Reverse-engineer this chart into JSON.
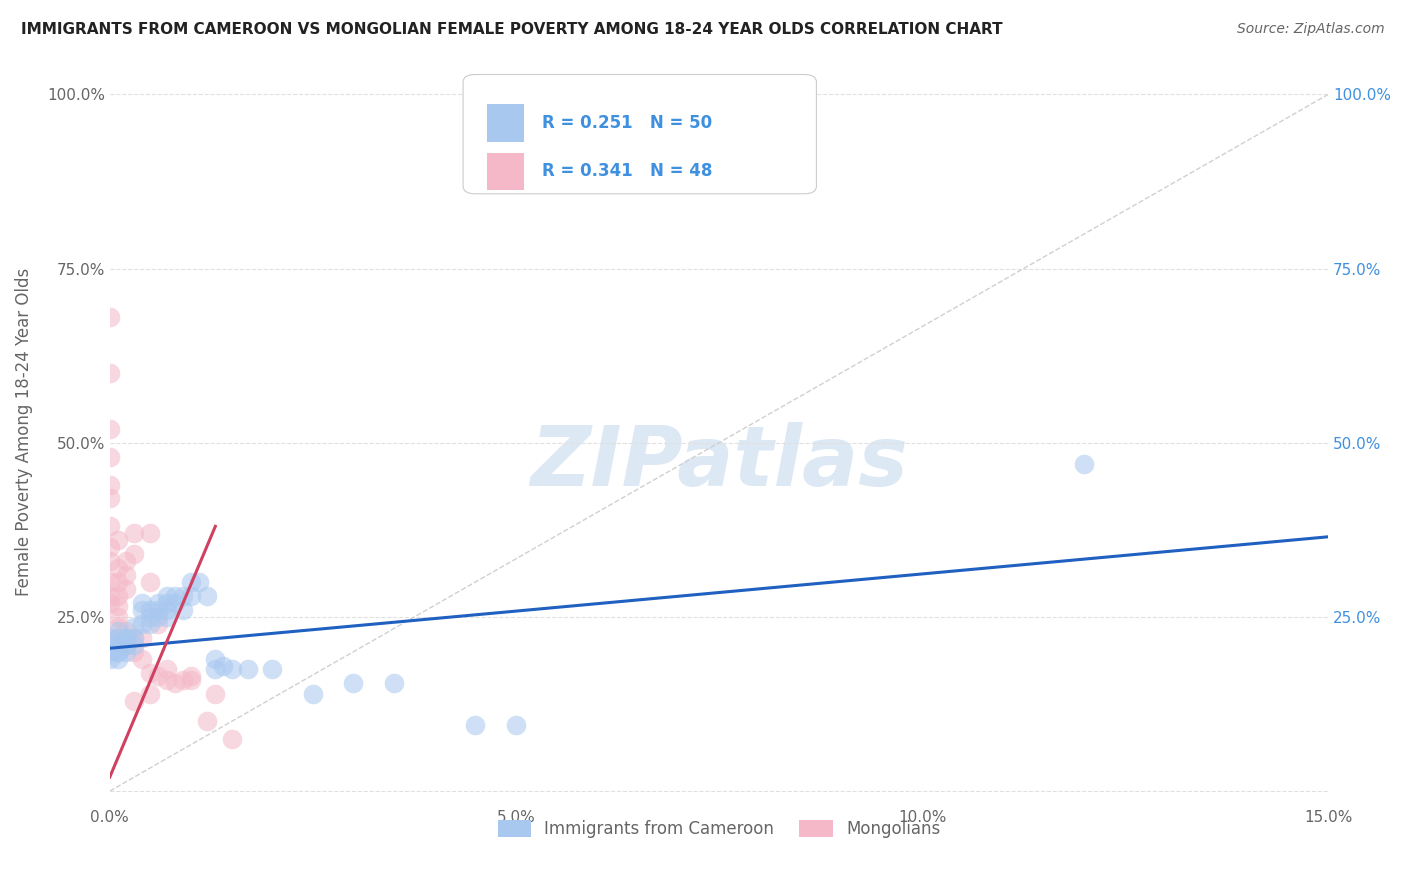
{
  "title": "IMMIGRANTS FROM CAMEROON VS MONGOLIAN FEMALE POVERTY AMONG 18-24 YEAR OLDS CORRELATION CHART",
  "source": "Source: ZipAtlas.com",
  "ylabel": "Female Poverty Among 18-24 Year Olds",
  "xlim": [
    0.0,
    0.15
  ],
  "ylim": [
    -0.02,
    1.05
  ],
  "xticks": [
    0.0,
    0.05,
    0.1,
    0.15
  ],
  "xticklabels": [
    "0.0%",
    "5.0%",
    "10.0%",
    "15.0%"
  ],
  "yticks": [
    0.0,
    0.25,
    0.5,
    0.75,
    1.0
  ],
  "yticklabels_left": [
    "",
    "25.0%",
    "50.0%",
    "75.0%",
    "100.0%"
  ],
  "yticklabels_right": [
    "",
    "25.0%",
    "50.0%",
    "75.0%",
    "100.0%"
  ],
  "legend_entries": [
    {
      "label": "Immigrants from Cameroon",
      "color": "#a8c8f0",
      "R": "0.251",
      "N": "50"
    },
    {
      "label": "Mongolians",
      "color": "#f4b8c8",
      "R": "0.341",
      "N": "48"
    }
  ],
  "blue_scatter": [
    [
      0.0,
      0.2
    ],
    [
      0.0,
      0.22
    ],
    [
      0.0,
      0.19
    ],
    [
      0.0,
      0.21
    ],
    [
      0.001,
      0.2
    ],
    [
      0.001,
      0.23
    ],
    [
      0.001,
      0.21
    ],
    [
      0.001,
      0.22
    ],
    [
      0.001,
      0.19
    ],
    [
      0.001,
      0.2
    ],
    [
      0.002,
      0.21
    ],
    [
      0.002,
      0.22
    ],
    [
      0.002,
      0.2
    ],
    [
      0.002,
      0.22
    ],
    [
      0.003,
      0.235
    ],
    [
      0.003,
      0.21
    ],
    [
      0.003,
      0.22
    ],
    [
      0.004,
      0.27
    ],
    [
      0.004,
      0.26
    ],
    [
      0.004,
      0.24
    ],
    [
      0.005,
      0.25
    ],
    [
      0.005,
      0.24
    ],
    [
      0.005,
      0.26
    ],
    [
      0.006,
      0.27
    ],
    [
      0.006,
      0.25
    ],
    [
      0.006,
      0.26
    ],
    [
      0.007,
      0.28
    ],
    [
      0.007,
      0.27
    ],
    [
      0.007,
      0.26
    ],
    [
      0.007,
      0.25
    ],
    [
      0.008,
      0.27
    ],
    [
      0.008,
      0.28
    ],
    [
      0.009,
      0.28
    ],
    [
      0.009,
      0.26
    ],
    [
      0.01,
      0.3
    ],
    [
      0.01,
      0.28
    ],
    [
      0.011,
      0.3
    ],
    [
      0.012,
      0.28
    ],
    [
      0.013,
      0.19
    ],
    [
      0.013,
      0.175
    ],
    [
      0.014,
      0.18
    ],
    [
      0.015,
      0.175
    ],
    [
      0.017,
      0.175
    ],
    [
      0.02,
      0.175
    ],
    [
      0.025,
      0.14
    ],
    [
      0.03,
      0.155
    ],
    [
      0.035,
      0.155
    ],
    [
      0.045,
      0.095
    ],
    [
      0.12,
      0.47
    ],
    [
      0.05,
      0.095
    ]
  ],
  "pink_scatter": [
    [
      0.0,
      0.68
    ],
    [
      0.0,
      0.6
    ],
    [
      0.0,
      0.52
    ],
    [
      0.0,
      0.48
    ],
    [
      0.0,
      0.44
    ],
    [
      0.0,
      0.42
    ],
    [
      0.0,
      0.38
    ],
    [
      0.0,
      0.35
    ],
    [
      0.0,
      0.33
    ],
    [
      0.0,
      0.3
    ],
    [
      0.0,
      0.28
    ],
    [
      0.0,
      0.27
    ],
    [
      0.001,
      0.36
    ],
    [
      0.001,
      0.32
    ],
    [
      0.001,
      0.3
    ],
    [
      0.001,
      0.28
    ],
    [
      0.001,
      0.265
    ],
    [
      0.001,
      0.25
    ],
    [
      0.001,
      0.235
    ],
    [
      0.001,
      0.22
    ],
    [
      0.001,
      0.21
    ],
    [
      0.002,
      0.33
    ],
    [
      0.002,
      0.31
    ],
    [
      0.002,
      0.29
    ],
    [
      0.002,
      0.23
    ],
    [
      0.002,
      0.21
    ],
    [
      0.003,
      0.37
    ],
    [
      0.003,
      0.34
    ],
    [
      0.003,
      0.22
    ],
    [
      0.003,
      0.2
    ],
    [
      0.003,
      0.13
    ],
    [
      0.004,
      0.22
    ],
    [
      0.004,
      0.19
    ],
    [
      0.005,
      0.37
    ],
    [
      0.005,
      0.3
    ],
    [
      0.005,
      0.17
    ],
    [
      0.005,
      0.14
    ],
    [
      0.006,
      0.24
    ],
    [
      0.006,
      0.165
    ],
    [
      0.007,
      0.175
    ],
    [
      0.007,
      0.16
    ],
    [
      0.008,
      0.155
    ],
    [
      0.009,
      0.16
    ],
    [
      0.01,
      0.165
    ],
    [
      0.01,
      0.16
    ],
    [
      0.012,
      0.1
    ],
    [
      0.013,
      0.14
    ],
    [
      0.015,
      0.075
    ]
  ],
  "scatter_alpha": 0.55,
  "scatter_size": 200,
  "blue_color": "#a8c8f0",
  "pink_color": "#f4b8c8",
  "blue_line_color": "#2060c0",
  "pink_line_color": "#d04060",
  "diagonal_color": "#d0d0d0",
  "grid_color": "#e0e0e0",
  "title_color": "#222222",
  "label_color": "#666666",
  "right_tick_color": "#4090e0",
  "legend_text_color_RN": "#4090e0",
  "watermark_text": "ZIPatlas",
  "watermark_color": "#dce8f4",
  "watermark_fontsize": 60
}
